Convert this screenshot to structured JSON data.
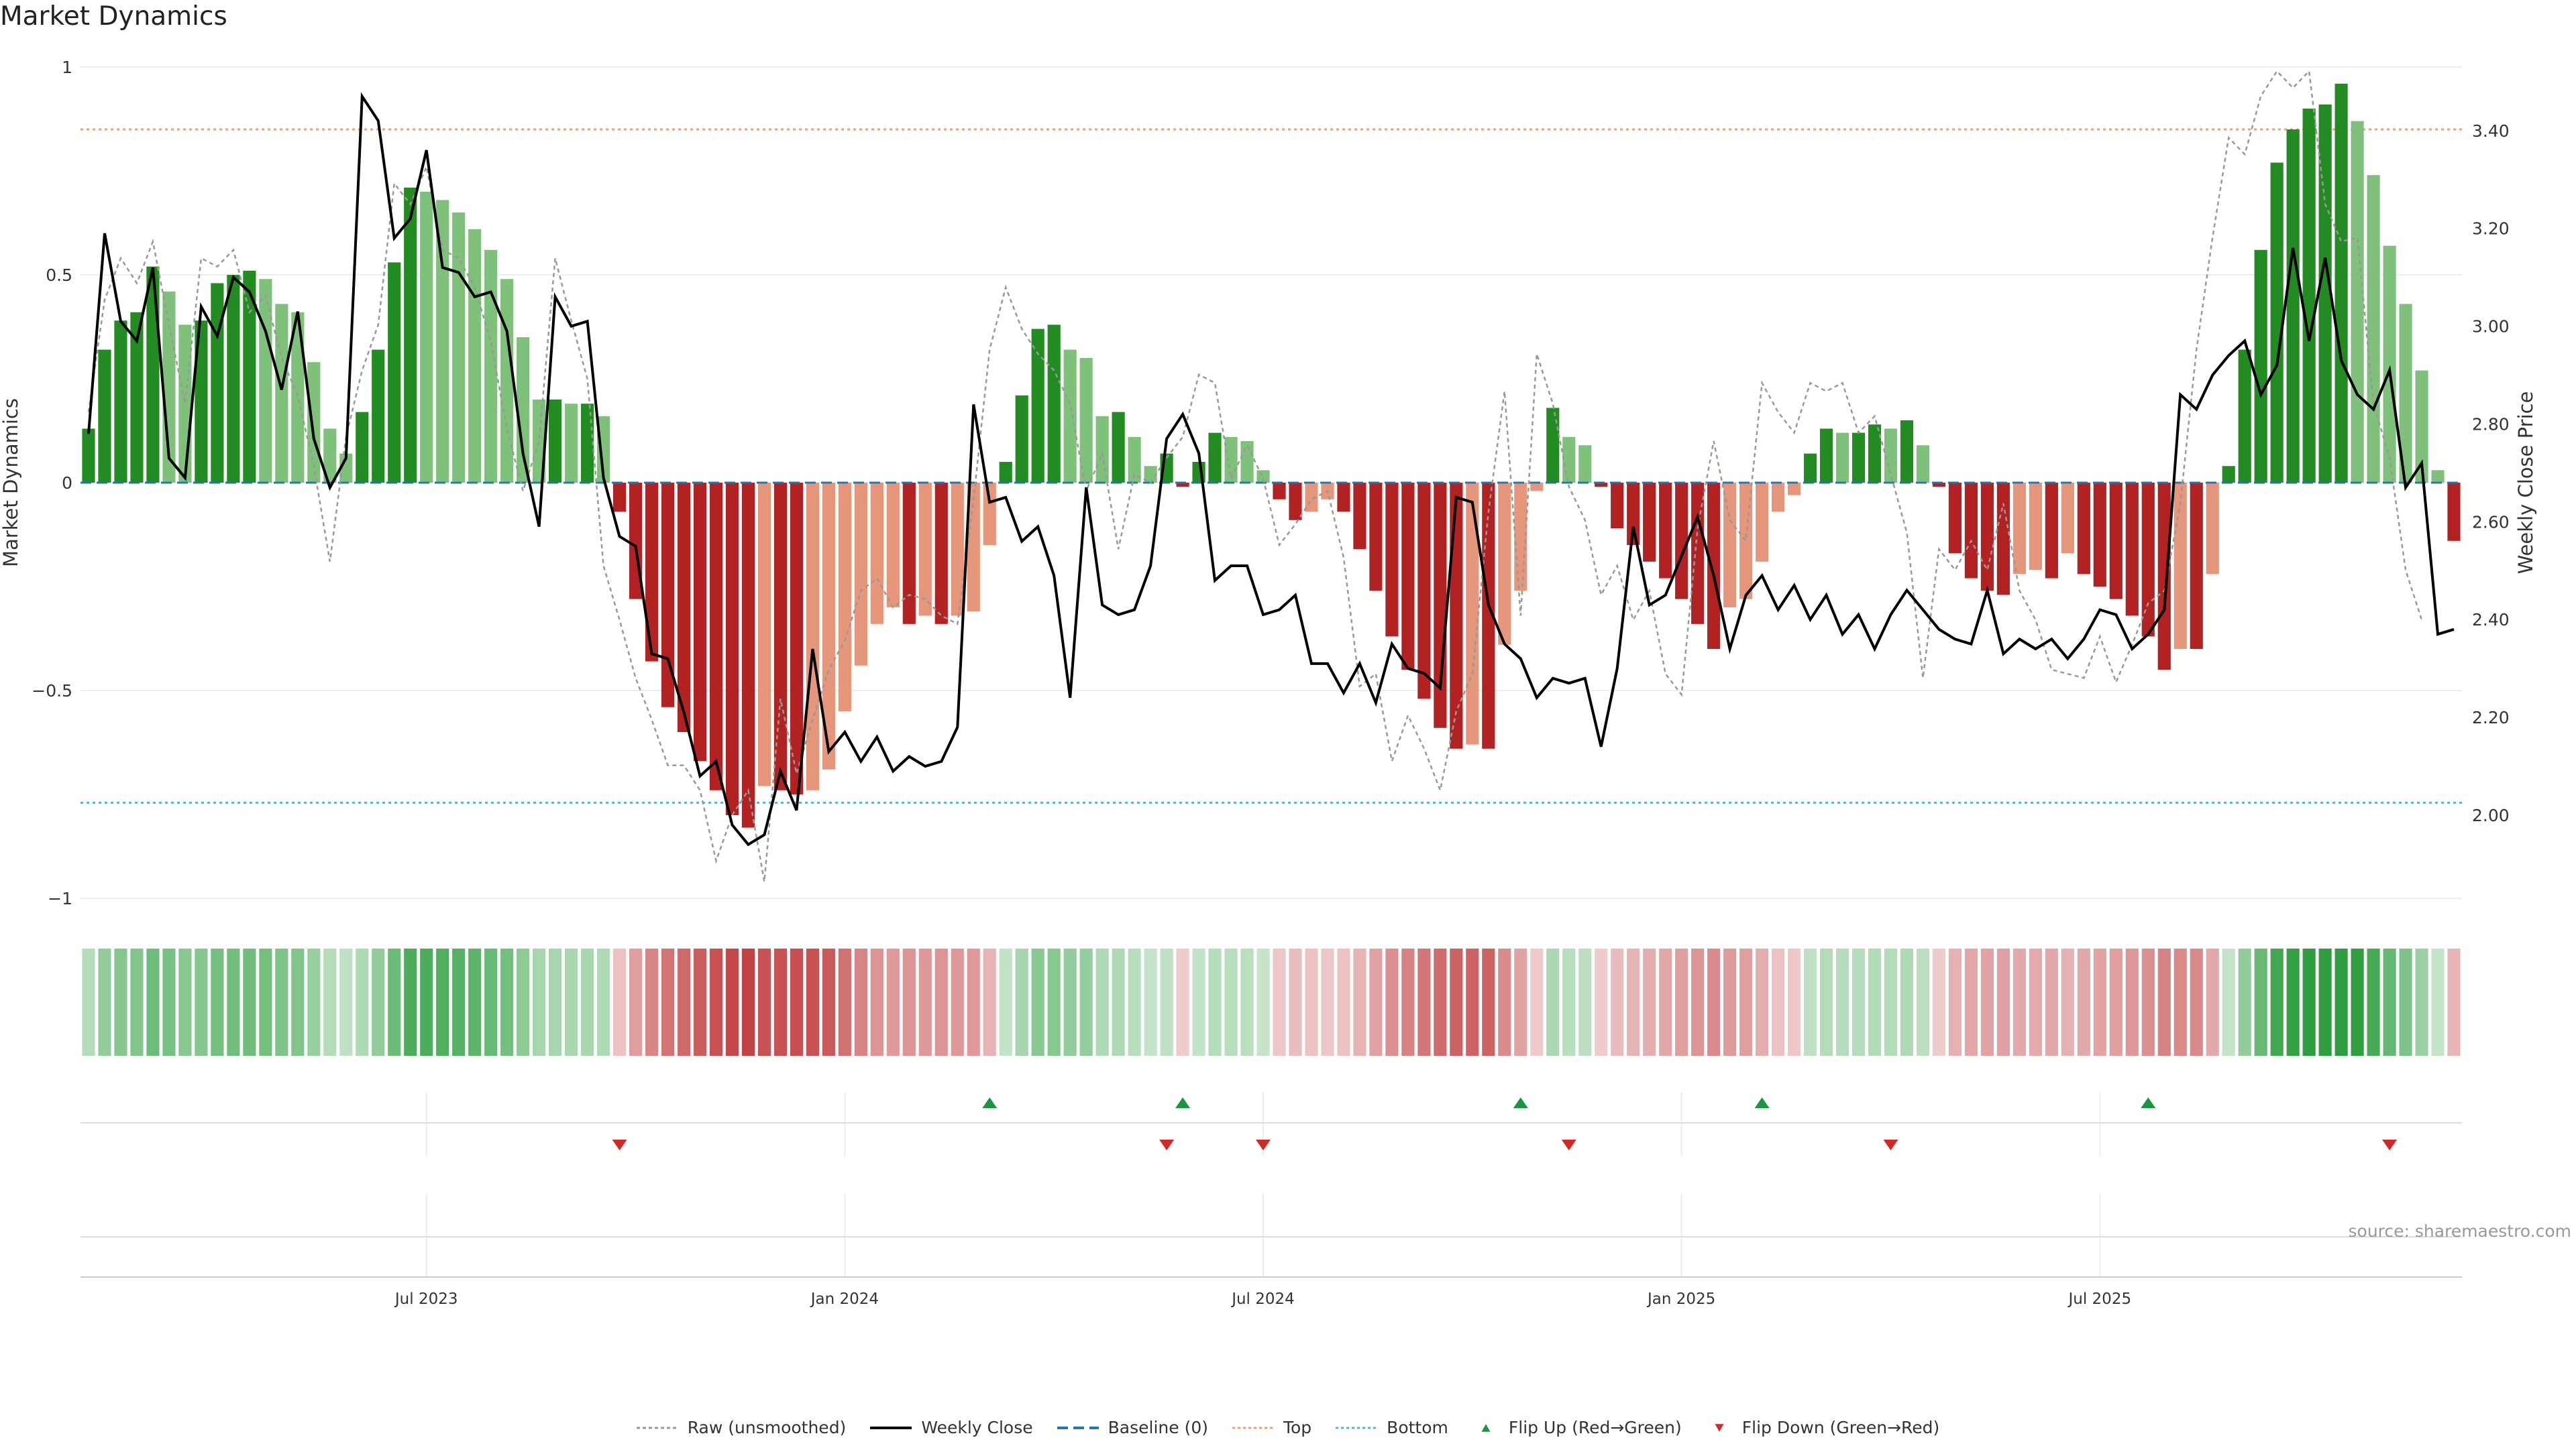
{
  "title": "Market Dynamics",
  "source": "source: sharemaestro.com",
  "legend": {
    "raw": "Raw (unsmoothed)",
    "close": "Weekly Close",
    "baseline": "Baseline (0)",
    "top": "Top",
    "bottom": "Bottom",
    "flip_up": "Flip Up (Red→Green)",
    "flip_down": "Flip Down (Green→Red)"
  },
  "colors": {
    "strong_up": "#228b22",
    "weak_up": "#7fc17b",
    "strong_down": "#b22222",
    "weak_down": "#e6967a",
    "raw": "#999999",
    "close": "#000000",
    "baseline": "#1f77b4",
    "top": "#f0a070",
    "bottom": "#4ab8d8",
    "flip_up": "#1a9641",
    "flip_down": "#d62728"
  },
  "chart_data": {
    "type": "bar",
    "title": "Market Dynamics",
    "ylabel": "Market Dynamics",
    "y2label": "Weekly Close Price",
    "ylim": [
      -1,
      1
    ],
    "y2lim": [
      1.83,
      3.53
    ],
    "yticks": [
      1,
      0.5,
      0,
      -0.5,
      -1
    ],
    "ytick_labels": [
      "1",
      "0.5",
      "0",
      "−0.5",
      "−1"
    ],
    "y2ticks": [
      3.4,
      3.2,
      3.0,
      2.8,
      2.6,
      2.4,
      2.2,
      2.0
    ],
    "y2tick_labels": [
      "3.40",
      "3.20",
      "3.00",
      "2.80",
      "2.60",
      "2.40",
      "2.20",
      "2.00"
    ],
    "xticks": [
      {
        "label": "Jul 2023",
        "week": 21
      },
      {
        "label": "Jan 2024",
        "week": 47
      },
      {
        "label": "Jul 2024",
        "week": 73
      },
      {
        "label": "Jan 2025",
        "week": 99
      },
      {
        "label": "Jul 2025",
        "week": 125
      }
    ],
    "top_level": 0.85,
    "bottom_level": -0.77,
    "baseline": 0,
    "dynamics": [
      0.13,
      0.32,
      0.39,
      0.41,
      0.52,
      0.46,
      0.38,
      0.39,
      0.48,
      0.5,
      0.51,
      0.49,
      0.43,
      0.41,
      0.29,
      0.13,
      0.07,
      0.17,
      0.32,
      0.53,
      0.71,
      0.7,
      0.68,
      0.65,
      0.61,
      0.56,
      0.49,
      0.35,
      0.2,
      0.2,
      0.19,
      0.19,
      0.16,
      -0.07,
      -0.28,
      -0.43,
      -0.54,
      -0.6,
      -0.67,
      -0.74,
      -0.8,
      -0.83,
      -0.73,
      -0.74,
      -0.75,
      -0.74,
      -0.69,
      -0.55,
      -0.44,
      -0.34,
      -0.3,
      -0.34,
      -0.32,
      -0.34,
      -0.32,
      -0.31,
      -0.15,
      0.05,
      0.21,
      0.37,
      0.38,
      0.32,
      0.3,
      0.16,
      0.17,
      0.11,
      0.04,
      0.07,
      -0.01,
      0.05,
      0.12,
      0.11,
      0.1,
      0.03,
      -0.04,
      -0.09,
      -0.07,
      -0.04,
      -0.07,
      -0.16,
      -0.26,
      -0.37,
      -0.45,
      -0.52,
      -0.59,
      -0.64,
      -0.63,
      -0.64,
      -0.39,
      -0.26,
      -0.02,
      0.18,
      0.11,
      0.09,
      -0.01,
      -0.11,
      -0.15,
      -0.19,
      -0.23,
      -0.28,
      -0.34,
      -0.4,
      -0.3,
      -0.28,
      -0.19,
      -0.07,
      -0.03,
      0.07,
      0.13,
      0.12,
      0.12,
      0.14,
      0.13,
      0.15,
      0.09,
      -0.01,
      -0.17,
      -0.23,
      -0.26,
      -0.27,
      -0.22,
      -0.21,
      -0.23,
      -0.17,
      -0.22,
      -0.25,
      -0.28,
      -0.32,
      -0.37,
      -0.45,
      -0.4,
      -0.4,
      -0.22,
      0.04,
      0.32,
      0.56,
      0.77,
      0.85,
      0.9,
      0.91,
      0.96,
      0.87,
      0.74,
      0.57,
      0.43,
      0.27,
      0.03,
      -0.14
    ],
    "raw": [
      0.17,
      0.44,
      0.54,
      0.48,
      0.58,
      0.38,
      0.19,
      0.54,
      0.52,
      0.56,
      0.41,
      0.45,
      0.3,
      0.21,
      0.04,
      -0.19,
      0.11,
      0.27,
      0.38,
      0.72,
      0.67,
      0.76,
      0.56,
      0.54,
      0.47,
      0.34,
      0.13,
      -0.02,
      0.1,
      0.54,
      0.39,
      0.25,
      -0.2,
      -0.33,
      -0.47,
      -0.57,
      -0.68,
      -0.68,
      -0.74,
      -0.91,
      -0.8,
      -0.74,
      -0.96,
      -0.52,
      -0.7,
      -0.57,
      -0.45,
      -0.38,
      -0.26,
      -0.23,
      -0.3,
      -0.27,
      -0.28,
      -0.32,
      -0.34,
      -0.04,
      0.32,
      0.47,
      0.37,
      0.31,
      0.27,
      0.19,
      -0.02,
      0.07,
      -0.16,
      0.02,
      0.0,
      0.06,
      0.11,
      0.26,
      0.24,
      0.01,
      0.09,
      0.01,
      -0.15,
      -0.1,
      -0.04,
      -0.02,
      -0.18,
      -0.49,
      -0.46,
      -0.67,
      -0.56,
      -0.64,
      -0.74,
      -0.55,
      -0.46,
      -0.07,
      0.22,
      -0.32,
      0.31,
      0.19,
      -0.01,
      -0.09,
      -0.27,
      -0.2,
      -0.33,
      -0.26,
      -0.46,
      -0.51,
      -0.11,
      0.1,
      -0.09,
      -0.14,
      0.24,
      0.17,
      0.12,
      0.24,
      0.22,
      0.24,
      0.12,
      0.16,
      0.02,
      -0.12,
      -0.47,
      -0.16,
      -0.21,
      -0.14,
      -0.21,
      -0.05,
      -0.26,
      -0.33,
      -0.45,
      -0.46,
      -0.47,
      -0.37,
      -0.48,
      -0.39,
      -0.29,
      -0.26,
      -0.05,
      0.32,
      0.59,
      0.83,
      0.79,
      0.93,
      0.99,
      0.95,
      0.99,
      0.67,
      0.58,
      0.59,
      0.19,
      0.06,
      -0.21,
      -0.33
    ],
    "close": [
      2.78,
      3.19,
      3.01,
      2.97,
      3.12,
      2.73,
      2.69,
      3.04,
      2.98,
      3.1,
      3.07,
      2.99,
      2.87,
      3.03,
      2.77,
      2.67,
      2.73,
      3.47,
      3.42,
      3.18,
      3.22,
      3.36,
      3.12,
      3.11,
      3.06,
      3.07,
      2.99,
      2.74,
      2.59,
      3.06,
      3.0,
      3.01,
      2.69,
      2.57,
      2.55,
      2.33,
      2.32,
      2.21,
      2.08,
      2.11,
      1.98,
      1.94,
      1.96,
      2.09,
      2.01,
      2.34,
      2.13,
      2.17,
      2.11,
      2.16,
      2.09,
      2.12,
      2.1,
      2.11,
      2.18,
      2.84,
      2.64,
      2.65,
      2.56,
      2.59,
      2.49,
      2.24,
      2.67,
      2.43,
      2.41,
      2.42,
      2.51,
      2.77,
      2.82,
      2.74,
      2.48,
      2.51,
      2.51,
      2.41,
      2.42,
      2.45,
      2.31,
      2.31,
      2.25,
      2.31,
      2.23,
      2.35,
      2.3,
      2.29,
      2.26,
      2.65,
      2.64,
      2.43,
      2.35,
      2.32,
      2.24,
      2.28,
      2.27,
      2.28,
      2.14,
      2.3,
      2.59,
      2.43,
      2.45,
      2.53,
      2.61,
      2.49,
      2.34,
      2.45,
      2.49,
      2.42,
      2.47,
      2.4,
      2.45,
      2.37,
      2.41,
      2.34,
      2.41,
      2.46,
      2.42,
      2.38,
      2.36,
      2.35,
      2.46,
      2.33,
      2.36,
      2.34,
      2.36,
      2.32,
      2.36,
      2.42,
      2.41,
      2.34,
      2.37,
      2.42,
      2.86,
      2.83,
      2.9,
      2.94,
      2.97,
      2.86,
      2.92,
      3.16,
      2.97,
      3.14,
      2.93,
      2.86,
      2.83,
      2.91,
      2.67,
      2.72,
      2.37,
      2.38
    ],
    "flip_up_weeks": [
      56,
      68,
      89,
      104,
      128
    ],
    "flip_down_weeks": [
      33,
      67,
      73,
      92,
      112,
      143
    ]
  }
}
